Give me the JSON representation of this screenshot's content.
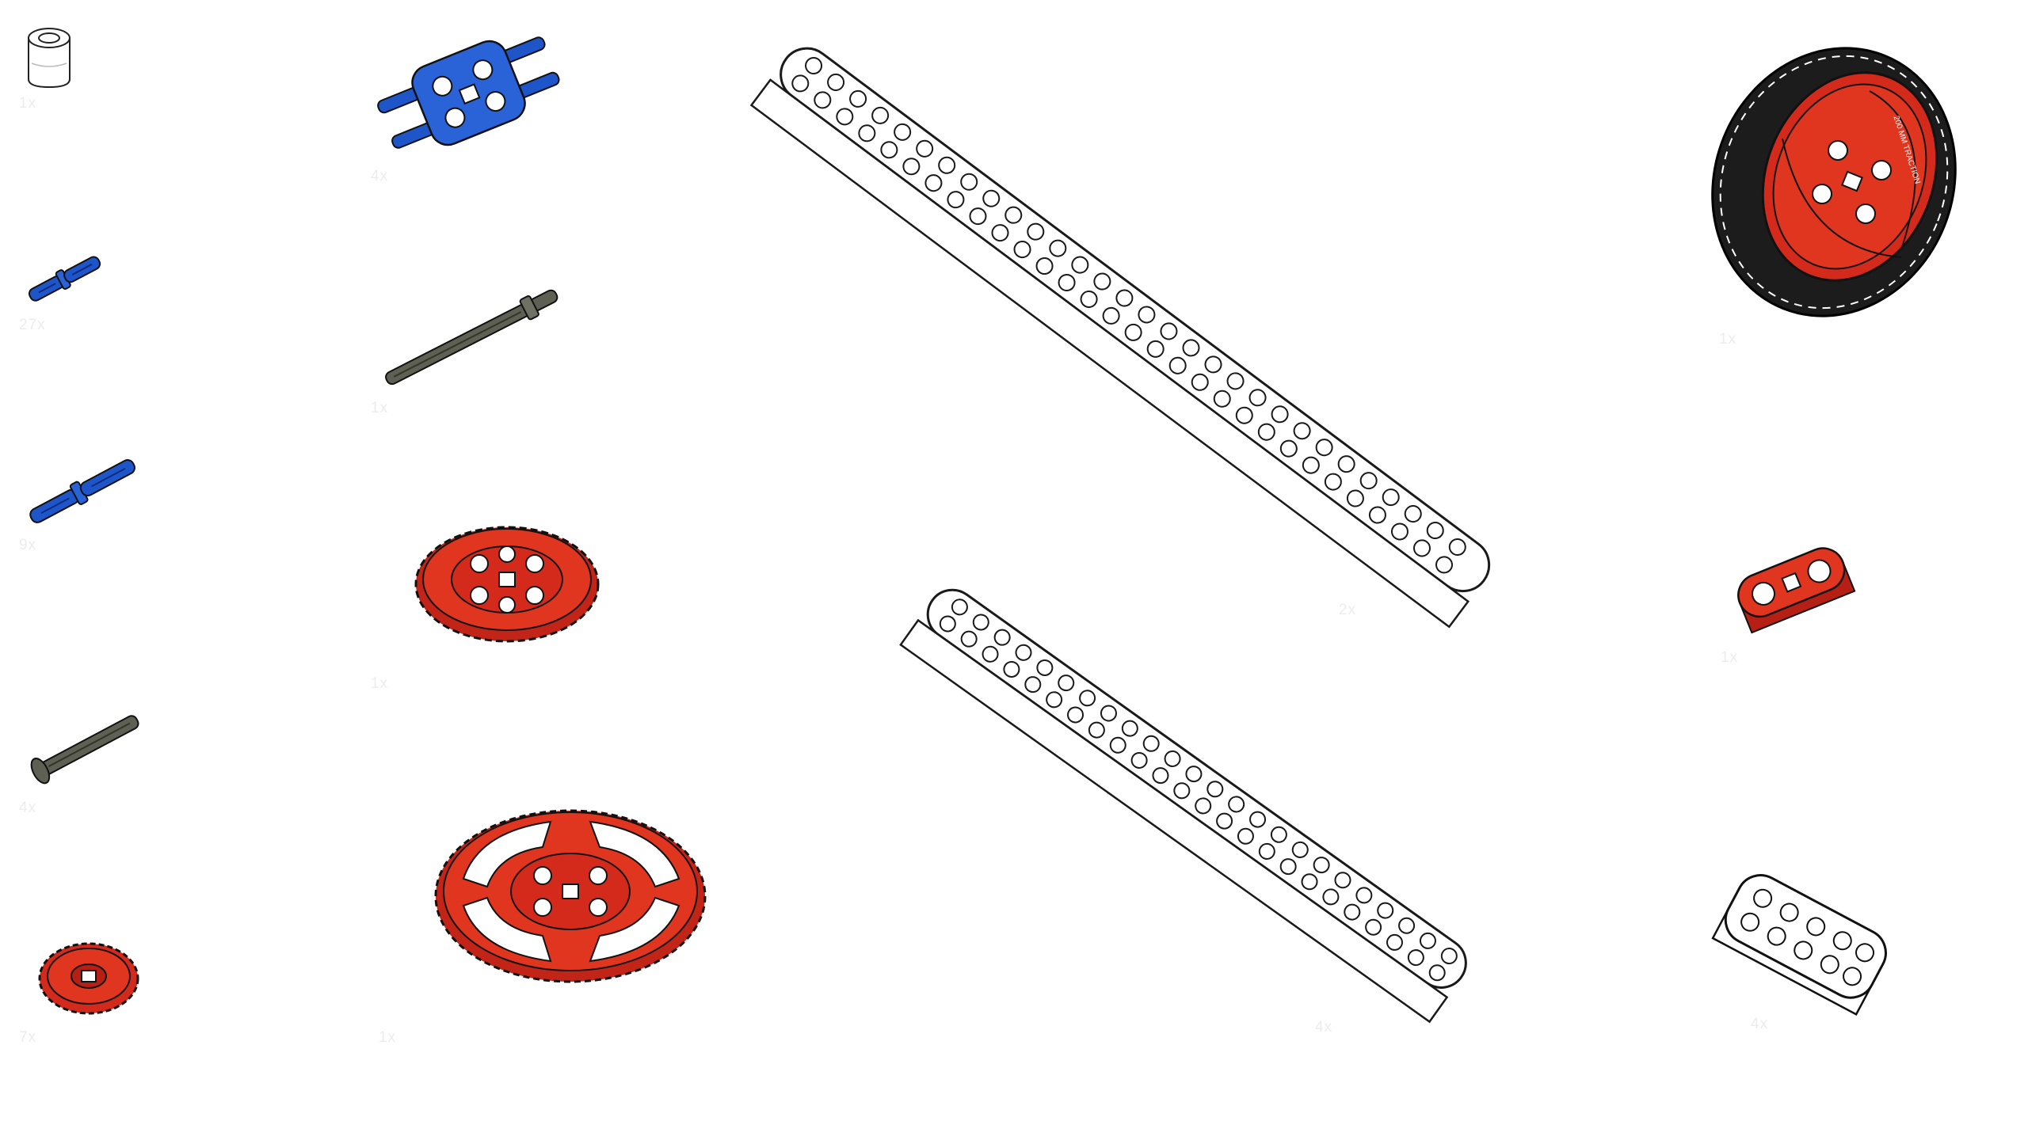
{
  "parts": [
    {
      "id": "bushing",
      "name": "bushing-icon",
      "qty": "1x"
    },
    {
      "id": "pin-short",
      "name": "short-connector-pin-icon",
      "qty": "27x"
    },
    {
      "id": "pin-long",
      "name": "long-connector-pin-icon",
      "qty": "9x"
    },
    {
      "id": "axle-short",
      "name": "short-axle-icon",
      "qty": "4x"
    },
    {
      "id": "gear-small",
      "name": "small-gear-icon",
      "qty": "7x"
    },
    {
      "id": "dual-pin-block",
      "name": "dual-pin-connector-icon",
      "qty": "4x"
    },
    {
      "id": "axle-long",
      "name": "long-axle-icon",
      "qty": "1x"
    },
    {
      "id": "gear-medium",
      "name": "medium-gear-icon",
      "qty": "1x"
    },
    {
      "id": "gear-large",
      "name": "large-gear-icon",
      "qty": "1x"
    },
    {
      "id": "beam-long",
      "name": "long-beam-icon",
      "qty": "2x"
    },
    {
      "id": "beam-medium",
      "name": "medium-beam-icon",
      "qty": "4x"
    },
    {
      "id": "wheel",
      "name": "wheel-icon",
      "qty": "1x",
      "tire_text": "200 MM TRACTION"
    },
    {
      "id": "link-red",
      "name": "red-link-icon",
      "qty": "1x"
    },
    {
      "id": "beam-short",
      "name": "short-beam-icon",
      "qty": "4x"
    }
  ],
  "colors": {
    "white_part": "#ffffff",
    "outline": "#1a1a1a",
    "blue_part": "#1e55c8",
    "gray_part": "#5d6052",
    "red_part": "#d42a1c",
    "tire": "#1c1c1c"
  }
}
